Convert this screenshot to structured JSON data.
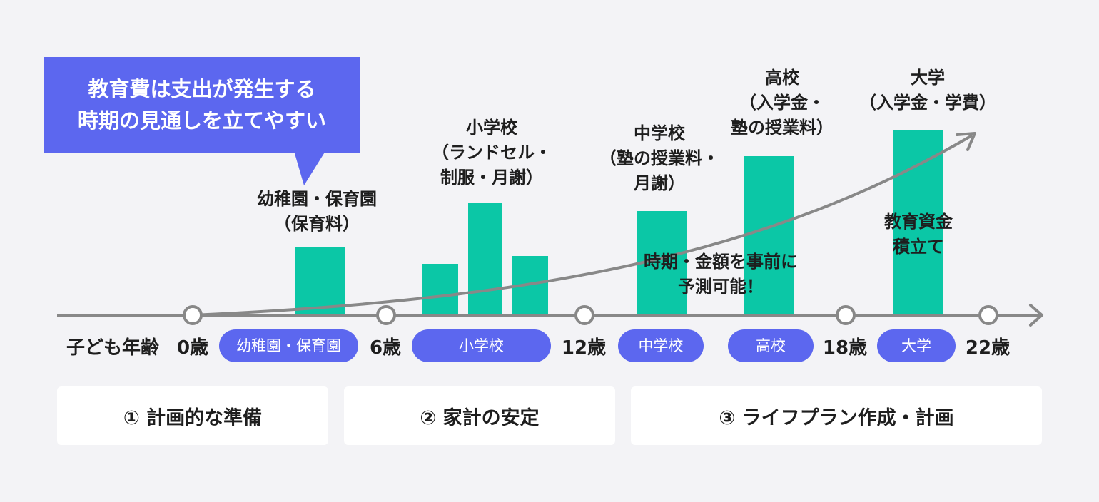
{
  "callout": {
    "line1": "教育費は支出が発生する",
    "line2": "時期の見通しを立てやすい"
  },
  "stage_labels": {
    "kindergarten": [
      "幼稚園・保育園",
      "（保育料）"
    ],
    "elementary": [
      "小学校",
      "（ランドセル・",
      "制服・月謝）"
    ],
    "middle": [
      "中学校",
      "（塾の授業料・",
      "月謝）"
    ],
    "high": [
      "高校",
      "（入学金・",
      "塾の授業料）"
    ],
    "university": [
      "大学",
      "（入学金・学費）"
    ]
  },
  "bar_notes": {
    "predictable": [
      "時期・金額を事前に",
      "予測可能！"
    ],
    "savings": [
      "教育資金",
      "積立て"
    ]
  },
  "timeline": {
    "axis_label": "子ども年齢",
    "ages": [
      "0歳",
      "6歳",
      "12歳",
      "18歳",
      "22歳"
    ],
    "stages": [
      "幼稚園・保育園",
      "小学校",
      "中学校",
      "高校",
      "大学"
    ]
  },
  "summary": [
    "① 計画的な準備",
    "② 家計の安定",
    "③ ライフプラン作成・計画"
  ],
  "colors": {
    "accent_blue": "#5c67ef",
    "bar_green": "#0bc7a6",
    "arrow_gray": "#888888",
    "background": "#f3f3f6"
  }
}
